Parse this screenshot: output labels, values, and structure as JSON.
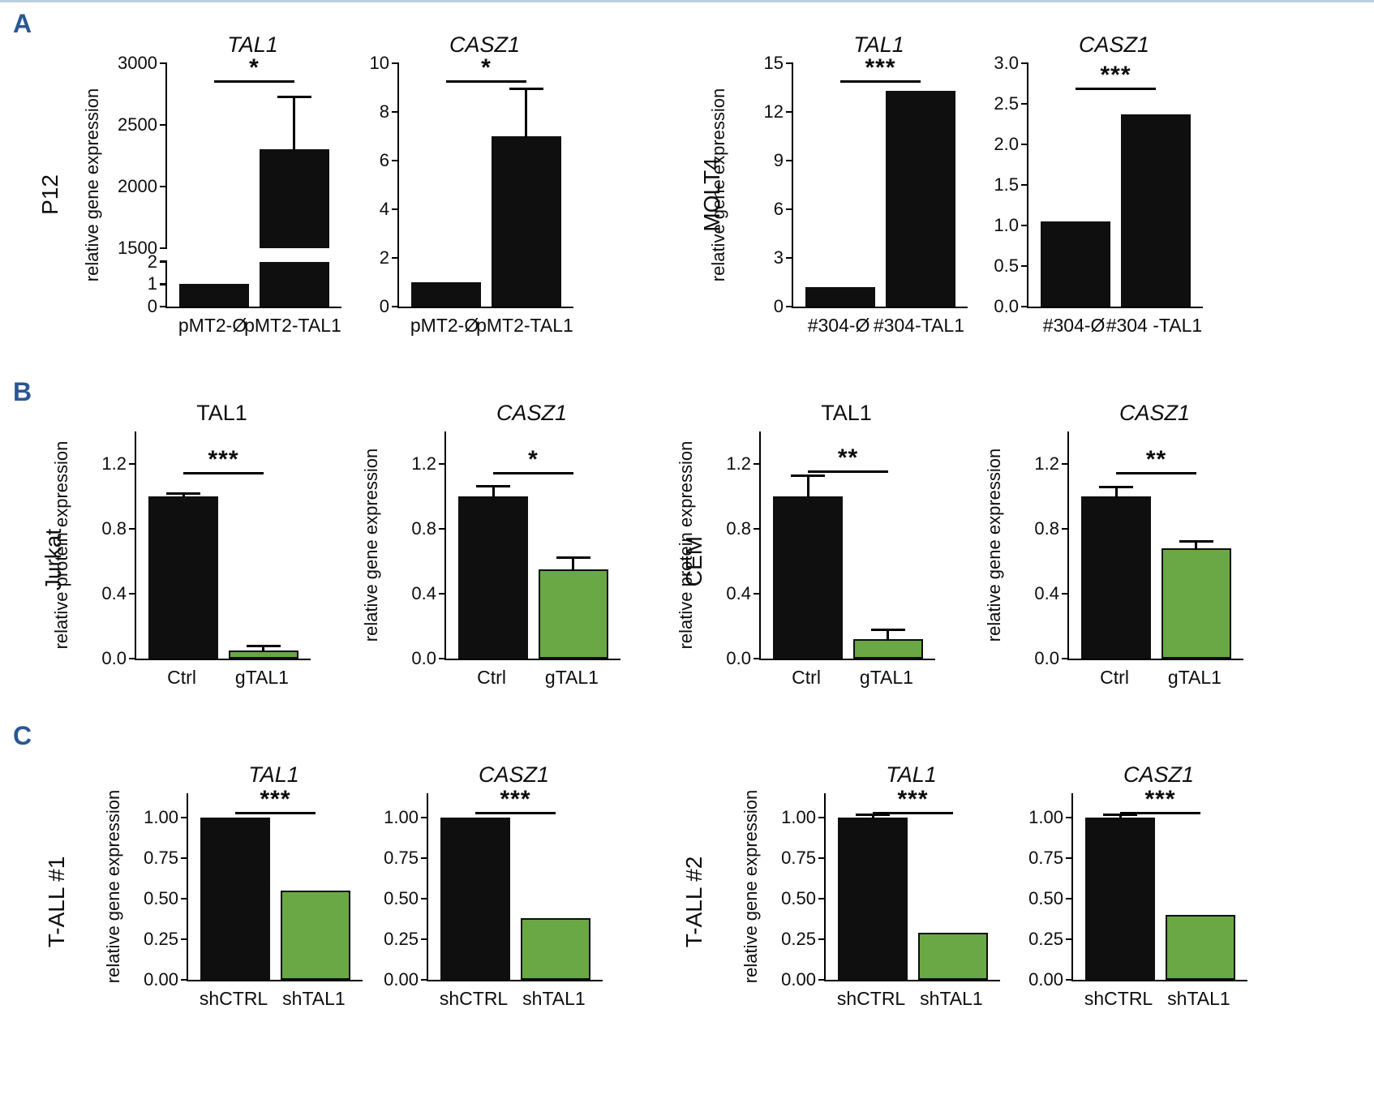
{
  "figure": {
    "panel_letters": [
      "A",
      "B",
      "C"
    ],
    "row_labels": [
      "P12",
      "MOLT4",
      "Jurkat",
      "CEM",
      "T-ALL #1",
      "T-ALL #2"
    ]
  },
  "colors": {
    "bar_black": "#0f0f0f",
    "bar_green": "#69a844",
    "panel_letter_blue": "#2b5793",
    "axis_black": "#000000"
  },
  "chart_data": [
    {
      "id": "a1",
      "type": "bar",
      "row_label": "P12",
      "title": "TAL1",
      "title_style": "italic",
      "ylabel": "relative gene expression",
      "categories": [
        "pMT2-Ø",
        "pMT2-TAL1"
      ],
      "values": [
        1,
        2300
      ],
      "errors": [
        0,
        420
      ],
      "bar_colors": [
        "#0f0f0f",
        "#0f0f0f"
      ],
      "significance": "*",
      "ylim": [
        0,
        3000
      ],
      "yticks": [
        0,
        1,
        2,
        1500,
        2000,
        2500,
        3000
      ],
      "ytick_labels": [
        "0",
        "1",
        "2",
        "1500",
        "2000",
        "2500",
        "3000"
      ],
      "broken_axis": {
        "segments": [
          {
            "vmin": 0,
            "vmax": 2,
            "height_frac": 0.185
          },
          {
            "vmin": 1500,
            "vmax": 3000,
            "height_frac": 0.76
          }
        ],
        "gap_frac": 0.055
      },
      "sig_frac": 0.07
    },
    {
      "id": "a2",
      "type": "bar",
      "row_label": "P12",
      "title": "CASZ1",
      "title_style": "italic",
      "ylabel": "",
      "categories": [
        "pMT2-Ø",
        "pMT2-TAL1"
      ],
      "values": [
        1,
        7
      ],
      "errors": [
        0,
        1.9
      ],
      "bar_colors": [
        "#0f0f0f",
        "#0f0f0f"
      ],
      "significance": "*",
      "ylim": [
        0,
        10
      ],
      "yticks": [
        0,
        2,
        4,
        6,
        8,
        10
      ],
      "ytick_labels": [
        "0",
        "2",
        "4",
        "6",
        "8",
        "10"
      ],
      "sig_frac": 0.07
    },
    {
      "id": "a3",
      "type": "bar",
      "row_label": "MOLT4",
      "title": "TAL1",
      "title_style": "italic",
      "ylabel": "relative gene expression",
      "categories": [
        "#304-Ø",
        "#304-TAL1"
      ],
      "values": [
        1.2,
        13.3
      ],
      "errors": [
        0,
        0
      ],
      "bar_colors": [
        "#0f0f0f",
        "#0f0f0f"
      ],
      "significance": "***",
      "ylim": [
        0,
        15
      ],
      "yticks": [
        0,
        3,
        6,
        9,
        12,
        15
      ],
      "ytick_labels": [
        "0",
        "3",
        "6",
        "9",
        "12",
        "15"
      ],
      "sig_frac": 0.07
    },
    {
      "id": "a4",
      "type": "bar",
      "row_label": "MOLT4",
      "title": "CASZ1",
      "title_style": "italic",
      "ylabel": "",
      "categories": [
        "#304-Ø",
        "#304 -TAL1"
      ],
      "values": [
        1.05,
        2.37
      ],
      "errors": [
        0,
        0
      ],
      "bar_colors": [
        "#0f0f0f",
        "#0f0f0f"
      ],
      "significance": "***",
      "ylim": [
        0,
        3
      ],
      "yticks": [
        0,
        0.5,
        1,
        1.5,
        2,
        2.5,
        3
      ],
      "ytick_labels": [
        "0.0",
        "0.5",
        "1.0",
        "1.5",
        "2.0",
        "2.5",
        "3.0"
      ],
      "sig_frac": 0.1
    },
    {
      "id": "b1",
      "type": "bar",
      "row_label": "Jurkat",
      "title": "TAL1",
      "title_style": "normal",
      "ylabel": "relative protein expression",
      "categories": [
        "Ctrl",
        "gTAL1"
      ],
      "values": [
        1.0,
        0.05
      ],
      "errors": [
        0.012,
        0.02
      ],
      "bar_colors": [
        "#0f0f0f",
        "#69a844"
      ],
      "significance": "***",
      "ylim": [
        0,
        1.4
      ],
      "yticks": [
        0,
        0.4,
        0.8,
        1.2
      ],
      "ytick_labels": [
        "0.0",
        "0.4",
        "0.8",
        "1.2"
      ],
      "sig_frac": 0.18
    },
    {
      "id": "b2",
      "type": "bar",
      "row_label": "Jurkat",
      "title": "CASZ1",
      "title_style": "italic",
      "ylabel": "relative gene expression",
      "categories": [
        "Ctrl",
        "gTAL1"
      ],
      "values": [
        1.0,
        0.55
      ],
      "errors": [
        0.055,
        0.065
      ],
      "bar_colors": [
        "#0f0f0f",
        "#69a844"
      ],
      "significance": "*",
      "ylim": [
        0,
        1.4
      ],
      "yticks": [
        0,
        0.4,
        0.8,
        1.2
      ],
      "ytick_labels": [
        "0.0",
        "0.4",
        "0.8",
        "1.2"
      ],
      "sig_frac": 0.18
    },
    {
      "id": "b3",
      "type": "bar",
      "row_label": "CEM",
      "title": "TAL1",
      "title_style": "normal",
      "ylabel": "relative protein expression",
      "categories": [
        "Ctrl",
        "gTAL1"
      ],
      "values": [
        1.0,
        0.12
      ],
      "errors": [
        0.12,
        0.05
      ],
      "bar_colors": [
        "#0f0f0f",
        "#69a844"
      ],
      "significance": "**",
      "ylim": [
        0,
        1.4
      ],
      "yticks": [
        0,
        0.4,
        0.8,
        1.2
      ],
      "ytick_labels": [
        "0.0",
        "0.4",
        "0.8",
        "1.2"
      ],
      "sig_frac": 0.17
    },
    {
      "id": "b4",
      "type": "bar",
      "row_label": "CEM",
      "title": "CASZ1",
      "title_style": "italic",
      "ylabel": "relative gene expression",
      "categories": [
        "Ctrl",
        "gTAL1"
      ],
      "values": [
        1.0,
        0.68
      ],
      "errors": [
        0.05,
        0.035
      ],
      "bar_colors": [
        "#0f0f0f",
        "#69a844"
      ],
      "significance": "**",
      "ylim": [
        0,
        1.4
      ],
      "yticks": [
        0,
        0.4,
        0.8,
        1.2
      ],
      "ytick_labels": [
        "0.0",
        "0.4",
        "0.8",
        "1.2"
      ],
      "sig_frac": 0.18
    },
    {
      "id": "c1",
      "type": "bar",
      "row_label": "T-ALL #1",
      "title": "TAL1",
      "title_style": "italic",
      "ylabel": "relative gene expression",
      "categories": [
        "shCTRL",
        "shTAL1"
      ],
      "values": [
        1.0,
        0.55
      ],
      "errors": [
        0,
        0
      ],
      "bar_colors": [
        "#0f0f0f",
        "#69a844"
      ],
      "significance": "***",
      "ylim": [
        0,
        1.15
      ],
      "yticks": [
        0,
        0.25,
        0.5,
        0.75,
        1.0
      ],
      "ytick_labels": [
        "0.00",
        "0.25",
        "0.50",
        "0.75",
        "1.00"
      ],
      "sig_frac": 0.1
    },
    {
      "id": "c2",
      "type": "bar",
      "row_label": "T-ALL #1",
      "title": "CASZ1",
      "title_style": "italic",
      "ylabel": "",
      "categories": [
        "shCTRL",
        "shTAL1"
      ],
      "values": [
        1.0,
        0.38
      ],
      "errors": [
        0,
        0
      ],
      "bar_colors": [
        "#0f0f0f",
        "#69a844"
      ],
      "significance": "***",
      "ylim": [
        0,
        1.15
      ],
      "yticks": [
        0,
        0.25,
        0.5,
        0.75,
        1.0
      ],
      "ytick_labels": [
        "0.00",
        "0.25",
        "0.50",
        "0.75",
        "1.00"
      ],
      "sig_frac": 0.1
    },
    {
      "id": "c3",
      "type": "bar",
      "row_label": "T-ALL #2",
      "title": "TAL1",
      "title_style": "italic",
      "ylabel": "relative gene expression",
      "categories": [
        "shCTRL",
        "shTAL1"
      ],
      "values": [
        1.0,
        0.29
      ],
      "errors": [
        0.012,
        0
      ],
      "bar_colors": [
        "#0f0f0f",
        "#69a844"
      ],
      "significance": "***",
      "ylim": [
        0,
        1.15
      ],
      "yticks": [
        0,
        0.25,
        0.5,
        0.75,
        1.0
      ],
      "ytick_labels": [
        "0.00",
        "0.25",
        "0.50",
        "0.75",
        "1.00"
      ],
      "sig_frac": 0.1
    },
    {
      "id": "c4",
      "type": "bar",
      "row_label": "T-ALL #2",
      "title": "CASZ1",
      "title_style": "italic",
      "ylabel": "",
      "categories": [
        "shCTRL",
        "shTAL1"
      ],
      "values": [
        1.0,
        0.4
      ],
      "errors": [
        0.01,
        0
      ],
      "bar_colors": [
        "#0f0f0f",
        "#69a844"
      ],
      "significance": "***",
      "ylim": [
        0,
        1.15
      ],
      "yticks": [
        0,
        0.25,
        0.5,
        0.75,
        1.0
      ],
      "ytick_labels": [
        "0.00",
        "0.25",
        "0.50",
        "0.75",
        "1.00"
      ],
      "sig_frac": 0.1
    }
  ]
}
